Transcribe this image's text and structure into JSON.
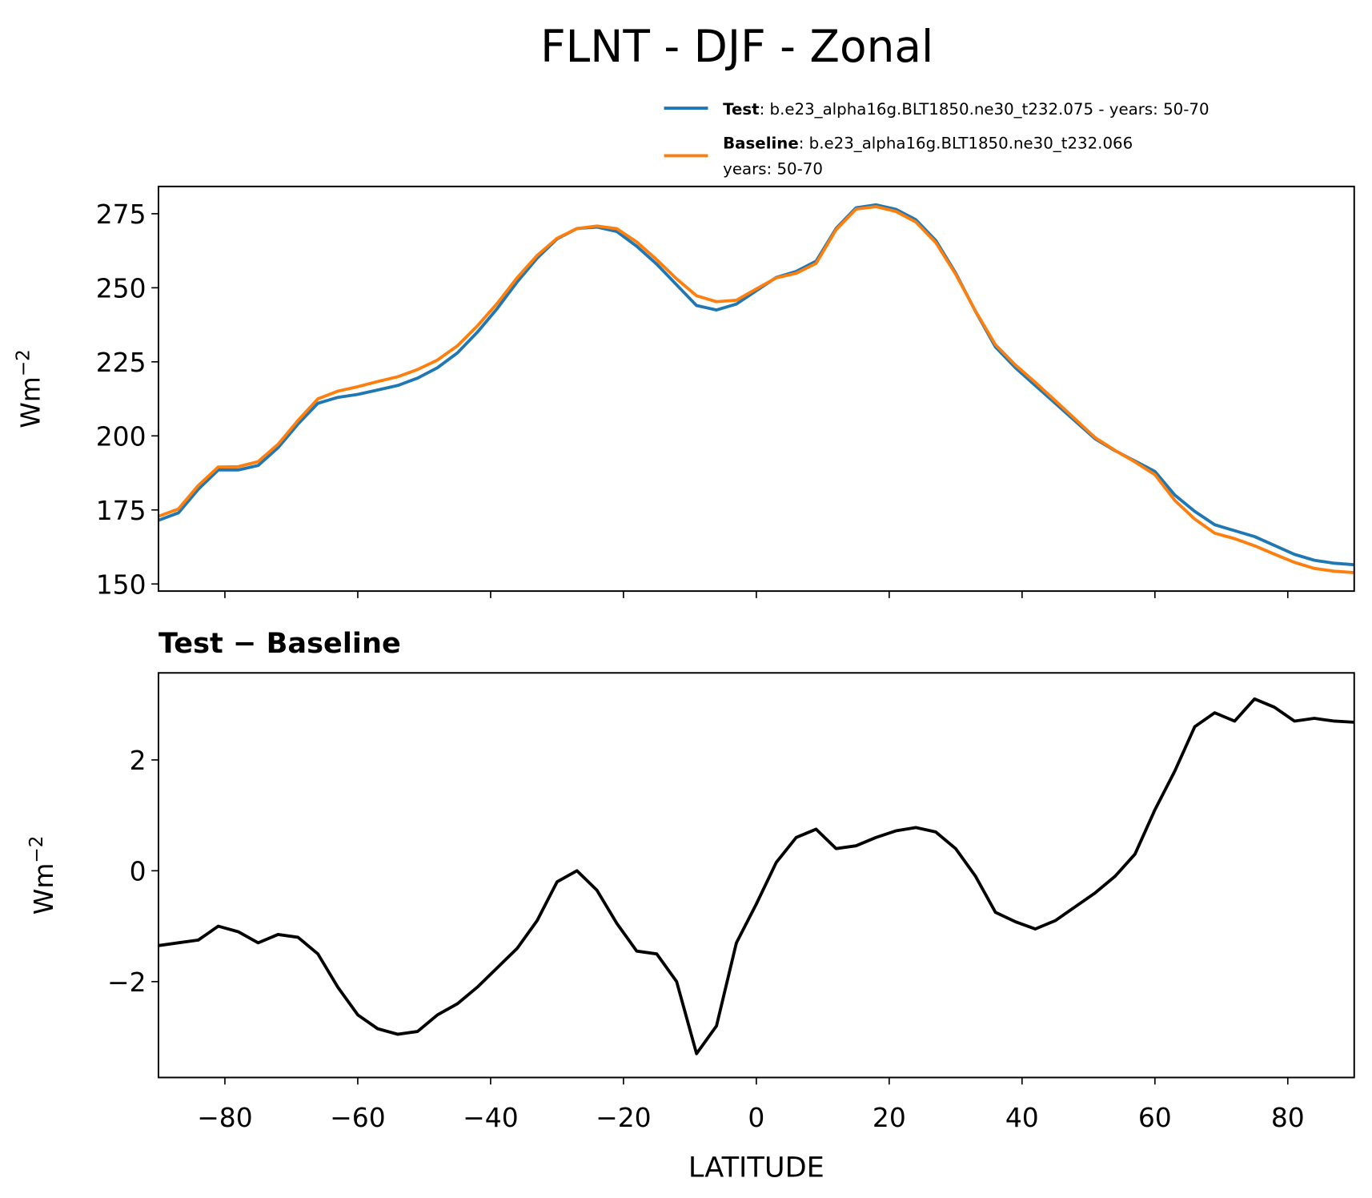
{
  "chart_data": [
    {
      "type": "line",
      "title": "FLNT - DJF - Zonal",
      "ylabel": {
        "base": "Wm",
        "sup": "−2"
      },
      "x": [
        -90,
        -87,
        -84,
        -81,
        -78,
        -75,
        -72,
        -69,
        -66,
        -63,
        -60,
        -57,
        -54,
        -51,
        -48,
        -45,
        -42,
        -39,
        -36,
        -33,
        -30,
        -27,
        -24,
        -21,
        -18,
        -15,
        -12,
        -9,
        -6,
        -3,
        0,
        3,
        6,
        9,
        12,
        15,
        18,
        21,
        24,
        27,
        30,
        33,
        36,
        39,
        42,
        45,
        48,
        51,
        54,
        57,
        60,
        63,
        66,
        69,
        72,
        75,
        78,
        81,
        84,
        87,
        90
      ],
      "xlim": [
        -90,
        90
      ],
      "xticks": [
        -80,
        -60,
        -40,
        -20,
        0,
        20,
        40,
        60,
        80
      ],
      "ylim": [
        147.6,
        284.2
      ],
      "yticks": [
        150,
        175,
        200,
        225,
        250,
        275
      ],
      "series": [
        {
          "name": "Test",
          "color": "#1f77b4",
          "description": [
            ": b.e23_alpha16g.BLT1850.ne30_t232.075 - years: 50-70"
          ],
          "values": [
            171.5,
            174,
            182,
            188.5,
            188.5,
            190,
            196,
            204,
            211,
            213,
            214,
            215.5,
            217,
            219.5,
            223,
            228,
            235,
            243,
            252,
            260,
            266.5,
            270,
            270.5,
            269,
            264,
            258,
            251,
            244,
            242.5,
            244.5,
            249,
            253.5,
            255.5,
            259,
            270,
            277,
            278,
            276.5,
            273,
            266,
            255,
            242,
            230,
            223,
            217,
            211,
            205,
            199,
            195,
            191.5,
            188,
            180,
            174.5,
            170,
            168,
            166,
            163,
            160,
            158,
            157,
            156.5
          ]
        },
        {
          "name": "Baseline",
          "color": "#ff7f0e",
          "description": [
            ": b.e23_alpha16g.BLT1850.ne30_t232.066",
            "years: 50-70"
          ],
          "values": [
            172.85,
            175.3,
            183.25,
            189.5,
            189.6,
            191.3,
            197.15,
            205.2,
            212.5,
            215.1,
            216.6,
            218.35,
            219.95,
            222.4,
            225.6,
            230.4,
            237.1,
            244.75,
            253.4,
            260.9,
            266.7,
            270,
            270.85,
            269.95,
            265.45,
            259.5,
            253,
            247.3,
            245.3,
            245.8,
            249.6,
            253.35,
            254.9,
            258.25,
            269.6,
            276.55,
            277.4,
            275.78,
            272.22,
            265.3,
            254.6,
            242.1,
            230.75,
            223.92,
            218.05,
            211.9,
            205.65,
            199.4,
            195.1,
            191.2,
            186.9,
            178.2,
            171.9,
            167.15,
            165.3,
            162.9,
            160.05,
            157.3,
            155.25,
            154.3,
            153.82
          ]
        }
      ]
    },
    {
      "type": "line",
      "subtitle": "Test − Baseline",
      "xlabel": "LATITUDE",
      "ylabel": {
        "base": "Wm",
        "sup": "−2"
      },
      "x": [
        -90,
        -87,
        -84,
        -81,
        -78,
        -75,
        -72,
        -69,
        -66,
        -63,
        -60,
        -57,
        -54,
        -51,
        -48,
        -45,
        -42,
        -39,
        -36,
        -33,
        -30,
        -27,
        -24,
        -21,
        -18,
        -15,
        -12,
        -9,
        -6,
        -3,
        0,
        3,
        6,
        9,
        12,
        15,
        18,
        21,
        24,
        27,
        30,
        33,
        36,
        39,
        42,
        45,
        48,
        51,
        54,
        57,
        60,
        63,
        66,
        69,
        72,
        75,
        78,
        81,
        84,
        87,
        90
      ],
      "xlim": [
        -90,
        90
      ],
      "xticks": [
        {
          "value": -80,
          "label": "−80"
        },
        {
          "value": -60,
          "label": "−60"
        },
        {
          "value": -40,
          "label": "−40"
        },
        {
          "value": -20,
          "label": "−20"
        },
        0,
        20,
        40,
        60,
        80
      ],
      "ylim": [
        -3.73,
        3.57
      ],
      "yticks": [
        {
          "value": -2,
          "label": "−2"
        },
        0,
        2
      ],
      "series": [
        {
          "color": "#000000",
          "values": [
            -1.35,
            -1.3,
            -1.25,
            -1.0,
            -1.1,
            -1.3,
            -1.15,
            -1.2,
            -1.5,
            -2.1,
            -2.6,
            -2.85,
            -2.95,
            -2.9,
            -2.6,
            -2.4,
            -2.1,
            -1.75,
            -1.4,
            -0.9,
            -0.2,
            0.0,
            -0.35,
            -0.95,
            -1.45,
            -1.5,
            -2.0,
            -3.3,
            -2.8,
            -1.3,
            -0.6,
            0.15,
            0.6,
            0.75,
            0.4,
            0.45,
            0.6,
            0.72,
            0.78,
            0.7,
            0.4,
            -0.1,
            -0.75,
            -0.92,
            -1.05,
            -0.9,
            -0.65,
            -0.4,
            -0.1,
            0.3,
            1.1,
            1.8,
            2.6,
            2.85,
            2.7,
            3.1,
            2.95,
            2.7,
            2.75,
            2.7,
            2.68
          ]
        }
      ]
    }
  ]
}
